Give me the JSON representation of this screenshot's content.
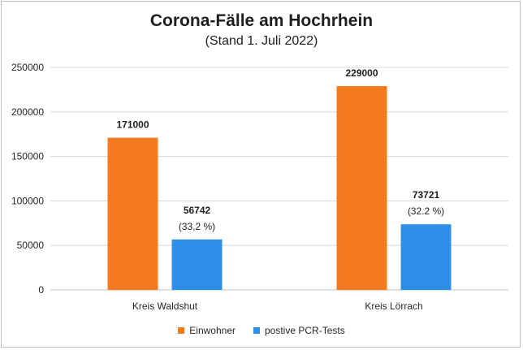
{
  "chart_data": {
    "type": "bar",
    "title": "Corona-Fälle am Hochrhein",
    "subtitle": "(Stand 1. Juli 2022)",
    "categories": [
      "Kreis Waldshut",
      "Kreis Lörrach"
    ],
    "series": [
      {
        "name": "Einwohner",
        "color": "#f47a1f",
        "values": [
          171000,
          229000
        ],
        "labels": [
          "171000",
          "229000"
        ]
      },
      {
        "name": "postive PCR-Tests",
        "color": "#2f8fe8",
        "values": [
          56742,
          73721
        ],
        "labels": [
          "56742",
          "73721"
        ],
        "sublabels": [
          "(33,2 %)",
          "(32.2 %)"
        ]
      }
    ],
    "ylim": [
      0,
      250000
    ],
    "yticks": [
      "0",
      "50000",
      "100000",
      "150000",
      "200000",
      "250000"
    ],
    "grid": true,
    "legend": "bottom"
  }
}
